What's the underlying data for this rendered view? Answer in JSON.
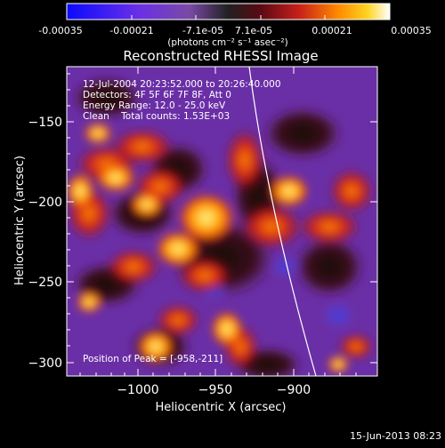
{
  "colorbar": {
    "tick_labels": [
      "-0.00035",
      "-0.00021",
      "-7.1e-05",
      "7.1e-05",
      "0.00021",
      "0.00035"
    ],
    "unit_label": "(photons cm⁻² s⁻¹ asec⁻²)"
  },
  "image": {
    "title": "Reconstructed RHESSI Image",
    "xlabel": "Heliocentric X (arcsec)",
    "ylabel": "Heliocentric Y (arcsec)",
    "x_tick_labels": [
      "−1000",
      "−950",
      "−900"
    ],
    "y_tick_labels": [
      "−150",
      "−200",
      "−250",
      "−300"
    ],
    "annotations": {
      "time_range": "12-Jul-2004 20:23:52.000 to 20:26:40.000",
      "detectors": "Detectors: 4F 5F 6F 7F 8F, Att 0",
      "energy_range": "Energy Range: 12.0 - 25.0 keV",
      "clean_counts": "Clean    Total counts: 1.53E+03",
      "peak_position": "Position of Peak = [-958,-211]"
    }
  },
  "footer": {
    "timestamp": "15-Jun-2013 08:23"
  }
}
